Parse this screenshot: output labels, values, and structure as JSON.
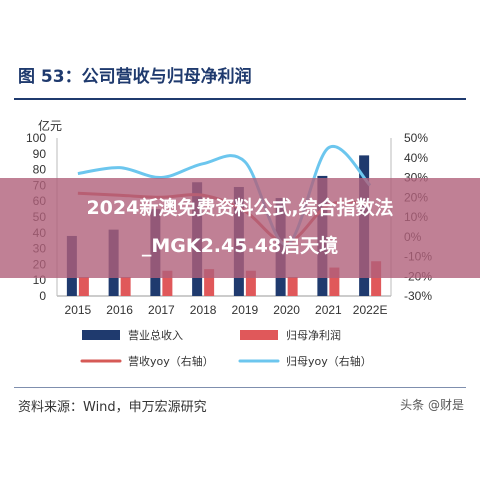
{
  "figure_title": "图 53：公司营收与归母净利润",
  "source_text": "资料来源：Wind，申万宏源研究",
  "watermark_text": "头条 @财是",
  "overlay": {
    "line1": "2024新澳免费资料公式,综合指数法",
    "line2": "_MGK2.45.48启天境"
  },
  "colors": {
    "title": "#1f3a6e",
    "revenue_bar": "#1f3a6e",
    "profit_bar": "#e0585a",
    "revenue_yoy": "#d65a56",
    "profit_yoy": "#6cc6ee",
    "overlay": "#b0607a"
  },
  "chart_data": {
    "type": "bar",
    "categories": [
      "2015",
      "2016",
      "2017",
      "2018",
      "2019",
      "2020",
      "2021",
      "2022E"
    ],
    "left_axis": {
      "unit": "亿元",
      "ylim": [
        0,
        100
      ],
      "ticks": [
        "0",
        "10",
        "20",
        "30",
        "40",
        "50",
        "60",
        "70",
        "80",
        "90",
        "100"
      ]
    },
    "right_axis": {
      "ylim": [
        -30,
        50
      ],
      "ticks": [
        "-30%",
        "-20%",
        "-10%",
        "0%",
        "10%",
        "20%",
        "30%",
        "40%",
        "50%"
      ]
    },
    "series": [
      {
        "name": "营业总收入",
        "kind": "bar",
        "axis": "left",
        "values": [
          38,
          42,
          55,
          72,
          69,
          62,
          76,
          89
        ]
      },
      {
        "name": "归母净利润",
        "kind": "bar",
        "axis": "left",
        "values": [
          12,
          12,
          16,
          17,
          16,
          12,
          18,
          22
        ]
      },
      {
        "name": "营收yoy（右轴）",
        "kind": "line",
        "axis": "right",
        "values": [
          22,
          21,
          20,
          21,
          13,
          -3,
          16,
          17
        ]
      },
      {
        "name": "归母yoy（右轴）",
        "kind": "line",
        "axis": "right",
        "values": [
          32,
          35,
          30,
          37,
          38,
          -4,
          45,
          26
        ]
      }
    ],
    "legend_position": "bottom",
    "grid": false
  }
}
